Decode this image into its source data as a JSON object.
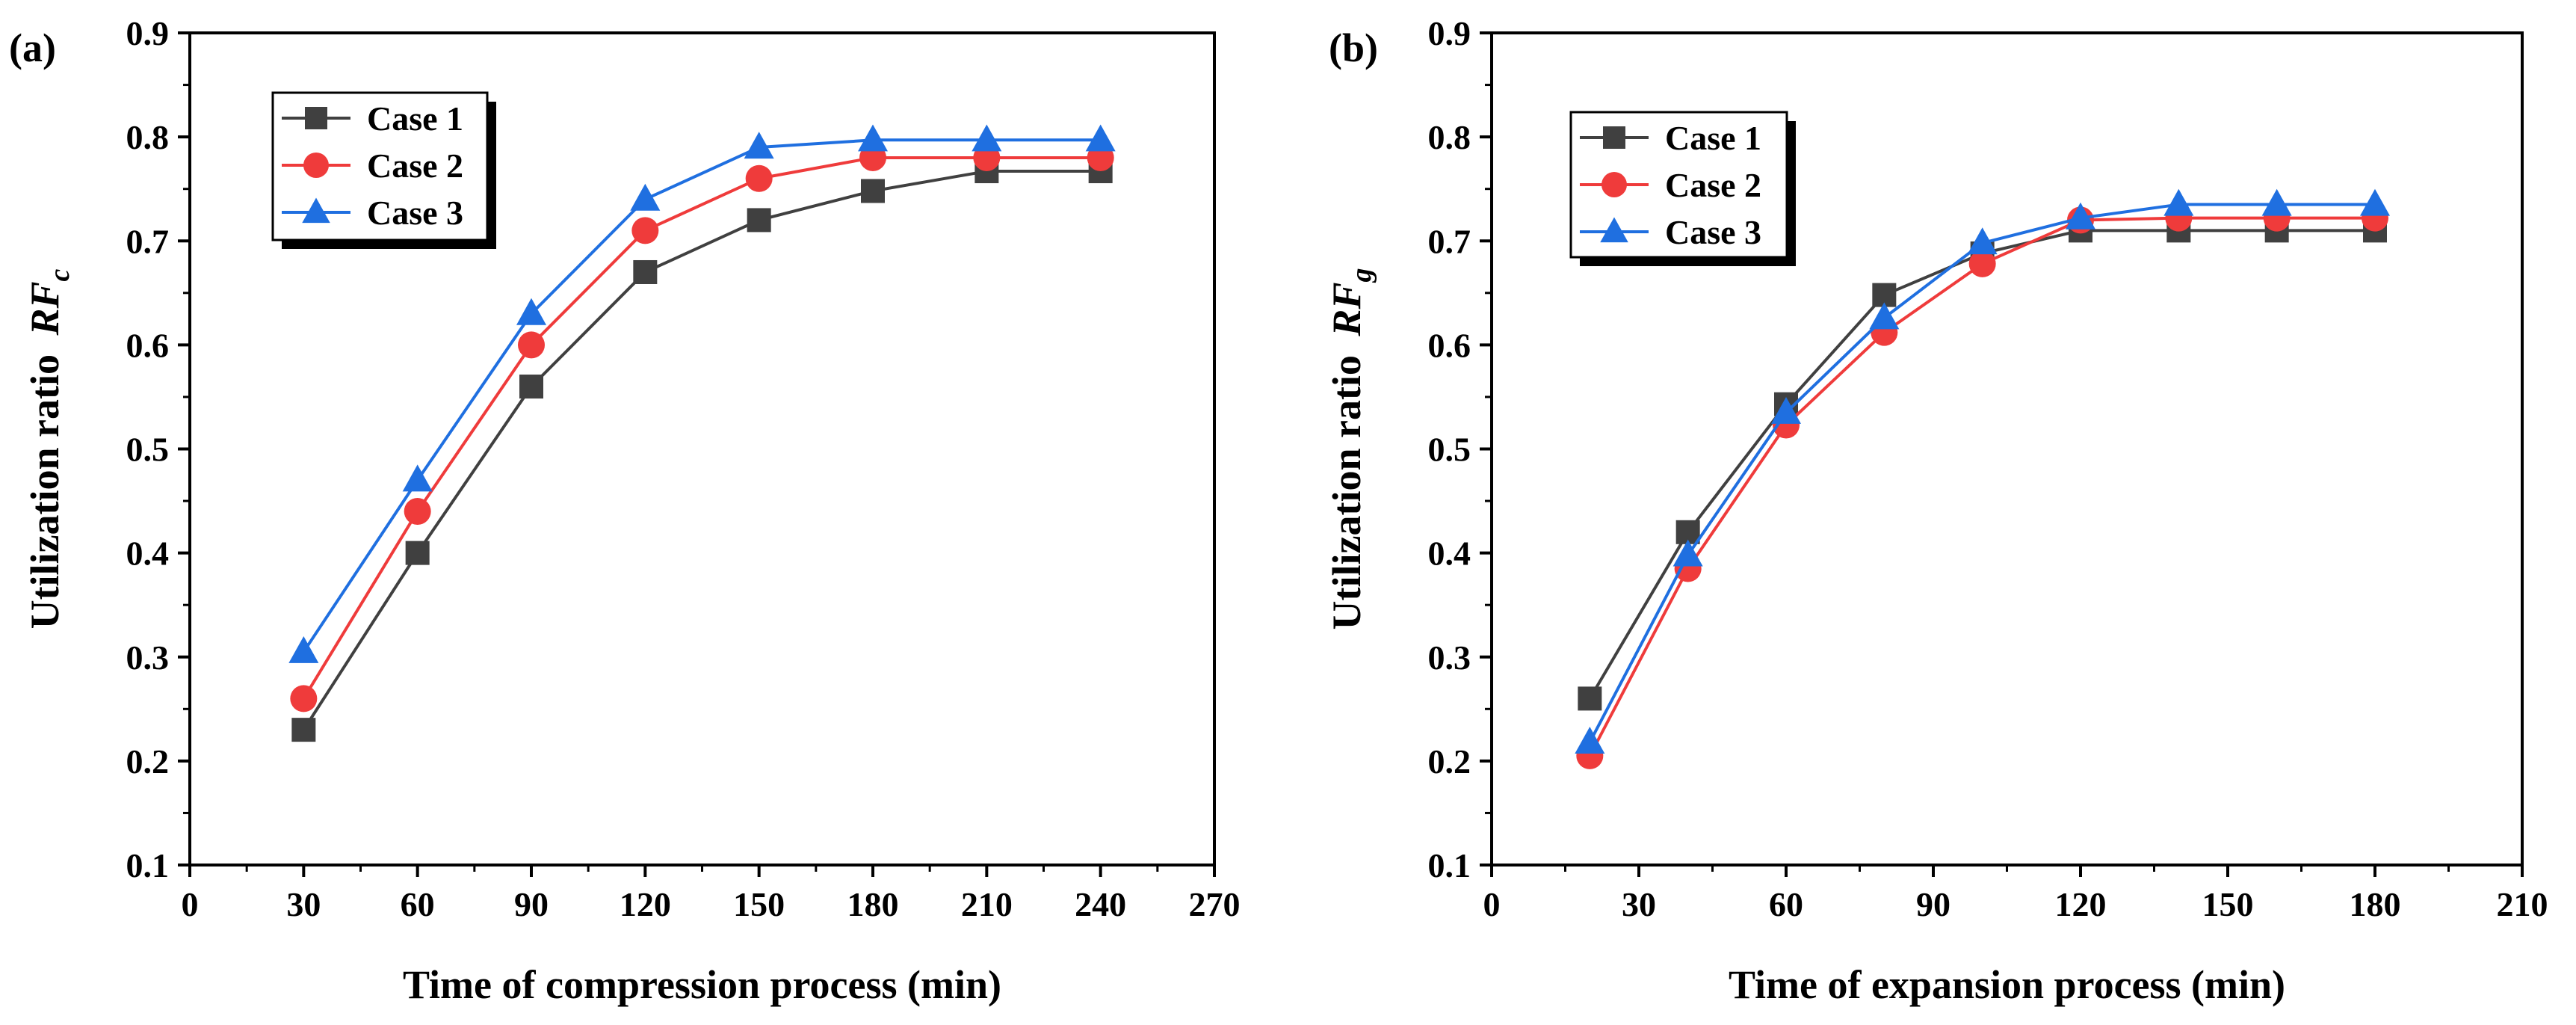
{
  "chart_data": [
    {
      "type": "line",
      "panel_label": "(a)",
      "xlabel": "Time of compression process (min)",
      "ylabel_prefix": "Utilization ratio ",
      "ylabel_symbol": "RF",
      "ylabel_subscript": "c",
      "xlim": [
        0,
        270
      ],
      "ylim": [
        0.1,
        0.9
      ],
      "xticks": [
        0,
        30,
        60,
        90,
        120,
        150,
        180,
        210,
        240,
        270
      ],
      "xtick_labels": [
        "0",
        "30",
        "60",
        "90",
        "120",
        "150",
        "180",
        "210",
        "240",
        "270"
      ],
      "yticks": [
        0.1,
        0.2,
        0.3,
        0.4,
        0.5,
        0.6,
        0.7,
        0.8,
        0.9
      ],
      "ytick_labels": [
        "0.1",
        "0.2",
        "0.3",
        "0.4",
        "0.5",
        "0.6",
        "0.7",
        "0.8",
        "0.9"
      ],
      "legend_position": "top-left",
      "x": [
        30,
        60,
        90,
        120,
        150,
        180,
        210,
        240
      ],
      "series": [
        {
          "name": "Case 1",
          "marker": "square",
          "color": "#404040",
          "values": [
            0.23,
            0.4,
            0.56,
            0.67,
            0.72,
            0.748,
            0.767,
            0.767
          ]
        },
        {
          "name": "Case 2",
          "marker": "circle",
          "color": "#ef3b3b",
          "values": [
            0.26,
            0.44,
            0.6,
            0.71,
            0.76,
            0.78,
            0.78,
            0.78
          ]
        },
        {
          "name": "Case 3",
          "marker": "triangle",
          "color": "#1f6fe0",
          "values": [
            0.305,
            0.47,
            0.63,
            0.74,
            0.79,
            0.797,
            0.797,
            0.797
          ]
        }
      ]
    },
    {
      "type": "line",
      "panel_label": "(b)",
      "xlabel": "Time of expansion process (min)",
      "ylabel_prefix": "Utilization ratio ",
      "ylabel_symbol": "RF",
      "ylabel_subscript": "g",
      "xlim": [
        0,
        210
      ],
      "ylim": [
        0.1,
        0.9
      ],
      "xticks": [
        0,
        30,
        60,
        90,
        120,
        150,
        180,
        210
      ],
      "xtick_labels": [
        "0",
        "30",
        "60",
        "90",
        "120",
        "150",
        "180",
        "210"
      ],
      "yticks": [
        0.1,
        0.2,
        0.3,
        0.4,
        0.5,
        0.6,
        0.7,
        0.8,
        0.9
      ],
      "ytick_labels": [
        "0.1",
        "0.2",
        "0.3",
        "0.4",
        "0.5",
        "0.6",
        "0.7",
        "0.8",
        "0.9"
      ],
      "legend_position": "top-left",
      "x": [
        20,
        40,
        60,
        80,
        100,
        120,
        140,
        160,
        180
      ],
      "series": [
        {
          "name": "Case 1",
          "marker": "square",
          "color": "#404040",
          "values": [
            0.26,
            0.42,
            0.543,
            0.648,
            0.688,
            0.71,
            0.71,
            0.71,
            0.71
          ]
        },
        {
          "name": "Case 2",
          "marker": "circle",
          "color": "#ef3b3b",
          "values": [
            0.205,
            0.385,
            0.523,
            0.612,
            0.678,
            0.72,
            0.722,
            0.722,
            0.722
          ]
        },
        {
          "name": "Case 3",
          "marker": "triangle",
          "color": "#1f6fe0",
          "values": [
            0.218,
            0.398,
            0.535,
            0.626,
            0.698,
            0.722,
            0.735,
            0.735,
            0.735
          ]
        }
      ]
    }
  ]
}
